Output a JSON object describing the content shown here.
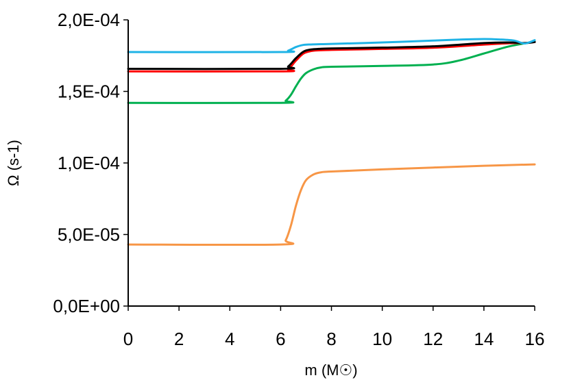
{
  "chart_data": {
    "type": "line",
    "xlabel": "m (M☉)",
    "ylabel": "Ω (s-1)",
    "xlim": [
      0,
      16
    ],
    "ylim": [
      0,
      0.0002
    ],
    "x_ticks": [
      "0",
      "2",
      "4",
      "6",
      "8",
      "10",
      "12",
      "14",
      "16"
    ],
    "y_ticks": [
      "0,0E+00",
      "5,0E-05",
      "1,0E-04",
      "1,5E-04",
      "2,0E-04"
    ],
    "grid": false,
    "legend": "none",
    "series": [
      {
        "color": "#f79646",
        "x": [
          0,
          6,
          6.2,
          6.4,
          6.6,
          6.8,
          7.0,
          7.3,
          7.6,
          8,
          10,
          12,
          14,
          16
        ],
        "y": [
          4.3e-05,
          4.3e-05,
          4.6e-05,
          5.6e-05,
          7e-05,
          8.1e-05,
          8.8e-05,
          9.2e-05,
          9.35e-05,
          9.4e-05,
          9.55e-05,
          9.68e-05,
          9.8e-05,
          9.9e-05
        ]
      },
      {
        "color": "#00b050",
        "x": [
          0,
          6,
          6.2,
          6.4,
          6.6,
          6.8,
          7.0,
          7.3,
          7.6,
          8,
          10,
          12,
          13,
          14,
          15,
          16
        ],
        "y": [
          0.000142,
          0.000142,
          0.0001435,
          0.0001475,
          0.0001535,
          0.000159,
          0.0001628,
          0.0001655,
          0.0001668,
          0.0001672,
          0.0001678,
          0.0001688,
          0.0001715,
          0.0001765,
          0.0001815,
          0.0001848
        ]
      },
      {
        "color": "#ff0000",
        "x": [
          0,
          6,
          6.3,
          6.6,
          6.9,
          7.2,
          7.5,
          8,
          10,
          12,
          14,
          15,
          15.6,
          16
        ],
        "y": [
          0.000164,
          0.000164,
          0.0001655,
          0.0001715,
          0.0001765,
          0.0001782,
          0.0001787,
          0.000179,
          0.0001797,
          0.0001805,
          0.0001827,
          0.0001837,
          0.0001838,
          0.0001845
        ]
      },
      {
        "color": "#000000",
        "x": [
          0,
          6,
          6.3,
          6.6,
          6.9,
          7.2,
          7.5,
          8,
          10,
          12,
          14,
          15,
          15.6,
          16
        ],
        "y": [
          0.0001658,
          0.0001658,
          0.0001675,
          0.0001732,
          0.0001778,
          0.0001793,
          0.0001797,
          0.00018,
          0.0001806,
          0.0001815,
          0.0001838,
          0.0001842,
          0.0001838,
          0.0001845
        ]
      },
      {
        "color": "#1fb3e6",
        "x": [
          0,
          6,
          6.3,
          6.6,
          6.9,
          7.2,
          7.6,
          8,
          10,
          12,
          13,
          14,
          14.6,
          15.2,
          15.6,
          16
        ],
        "y": [
          0.0001775,
          0.0001775,
          0.0001785,
          0.000181,
          0.0001825,
          0.0001828,
          0.000183,
          0.0001832,
          0.0001842,
          0.0001855,
          0.0001862,
          0.0001866,
          0.0001863,
          0.0001855,
          0.0001835,
          0.0001858
        ]
      }
    ]
  }
}
